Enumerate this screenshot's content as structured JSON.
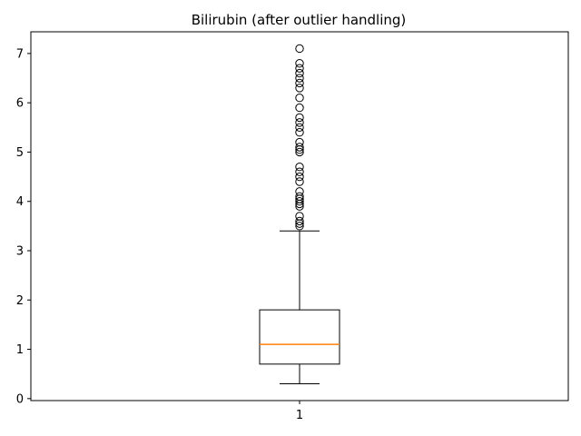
{
  "chart_data": {
    "type": "box",
    "title": "Bilirubin (after outlier handling)",
    "xlabel": "",
    "ylabel": "",
    "categories": [
      "1"
    ],
    "ylim": [
      -0.04,
      7.44
    ],
    "yticks": [
      0,
      1,
      2,
      3,
      4,
      5,
      6,
      7
    ],
    "grid": false,
    "box": {
      "q1": 0.7,
      "median": 1.1,
      "q3": 1.8,
      "whisker_low": 0.3,
      "whisker_high": 3.4
    },
    "outliers": [
      3.5,
      3.55,
      3.6,
      3.7,
      3.9,
      3.95,
      4.0,
      4.05,
      4.1,
      4.2,
      4.4,
      4.5,
      4.6,
      4.7,
      5.0,
      5.05,
      5.1,
      5.2,
      5.4,
      5.5,
      5.6,
      5.7,
      5.9,
      6.1,
      6.3,
      6.4,
      6.5,
      6.6,
      6.7,
      6.8,
      7.1
    ]
  },
  "colors": {
    "box": "#000000",
    "median": "#ff7f0e",
    "outlier": "#000000"
  }
}
